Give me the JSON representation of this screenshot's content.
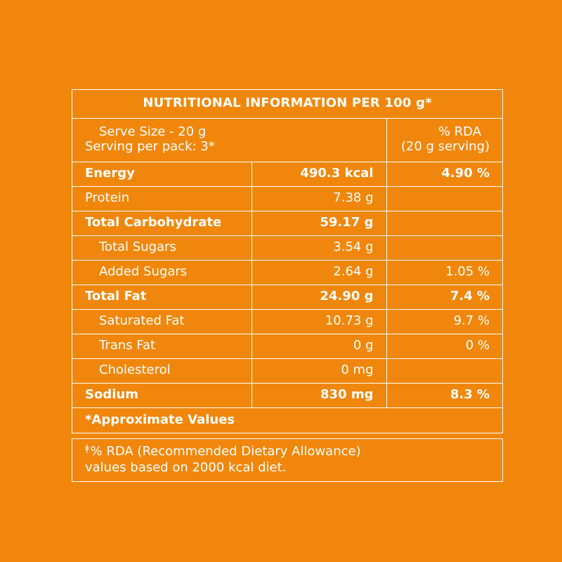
{
  "table": {
    "title": "NUTRITIONAL INFORMATION PER 100 g*",
    "serve_size": "Serve Size - 20 g",
    "servings_per_pack": "Serving per pack: 3*",
    "rda_header_line1": "% RDA",
    "rda_header_line2": "(20 g serving)",
    "rows": [
      {
        "name": "Energy",
        "amount": "490.3 kcal",
        "rda": "4.90 %"
      },
      {
        "name": "Protein",
        "amount": "7.38 g",
        "rda": ""
      },
      {
        "name": "Total Carbohydrate",
        "amount": "59.17 g",
        "rda": ""
      },
      {
        "name": "Total Sugars",
        "amount": "3.54 g",
        "rda": ""
      },
      {
        "name": "Added Sugars",
        "amount": "2.64 g",
        "rda": "1.05 %"
      },
      {
        "name": "Total Fat",
        "amount": "24.90 g",
        "rda": "7.4 %"
      },
      {
        "name": "Saturated Fat",
        "amount": "10.73 g",
        "rda": "9.7 %"
      },
      {
        "name": "Trans Fat",
        "amount": "0 g",
        "rda": "0 %"
      },
      {
        "name": "Cholesterol",
        "amount": "0 mg",
        "rda": ""
      },
      {
        "name": "Sodium",
        "amount": "830 mg",
        "rda": "8.3 %"
      }
    ],
    "approx_note": "*Approximate Values"
  },
  "footnote": {
    "symbol": "ǂ",
    "line1": "% RDA (Recommended Dietary Allowance)",
    "line2": "values based on 2000 kcal diet."
  },
  "colors": {
    "background": "#f0870c",
    "foreground": "#ffffff"
  }
}
